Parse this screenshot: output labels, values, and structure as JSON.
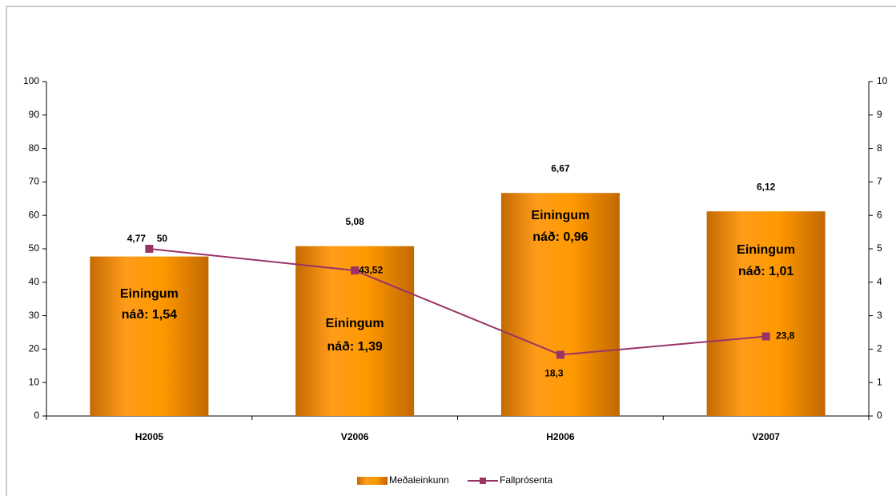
{
  "chart_data": {
    "type": "bar-line",
    "categories": [
      "H2005",
      "V2006",
      "H2006",
      "V2007"
    ],
    "series": [
      {
        "name": "Meðaleinkunn",
        "type": "bar",
        "axis": "y2",
        "color": "#ff9900",
        "values": [
          4.77,
          5.08,
          6.67,
          6.12
        ],
        "value_labels": [
          "4,77",
          "5,08",
          "6,67",
          "6,12"
        ]
      },
      {
        "name": "Fallprósenta",
        "type": "line",
        "axis": "y",
        "color": "#993366",
        "values": [
          50,
          43.52,
          18.3,
          23.8
        ],
        "value_labels": [
          "50",
          "43,52",
          "18,3",
          "23,8"
        ]
      }
    ],
    "annotations": [
      [
        "Einingum",
        "náð:  1,54"
      ],
      [
        "Einingum",
        "náð: 1,39"
      ],
      [
        "Einingum",
        "náð: 0,96"
      ],
      [
        "Einingum",
        "náð: 1,01"
      ]
    ],
    "ylim": [
      0,
      100
    ],
    "yticks": [
      0,
      10,
      20,
      30,
      40,
      50,
      60,
      70,
      80,
      90,
      100
    ],
    "y2lim": [
      0,
      10
    ],
    "y2ticks": [
      0,
      1,
      2,
      3,
      4,
      5,
      6,
      7,
      8,
      9,
      10
    ],
    "legend": "bottom"
  }
}
